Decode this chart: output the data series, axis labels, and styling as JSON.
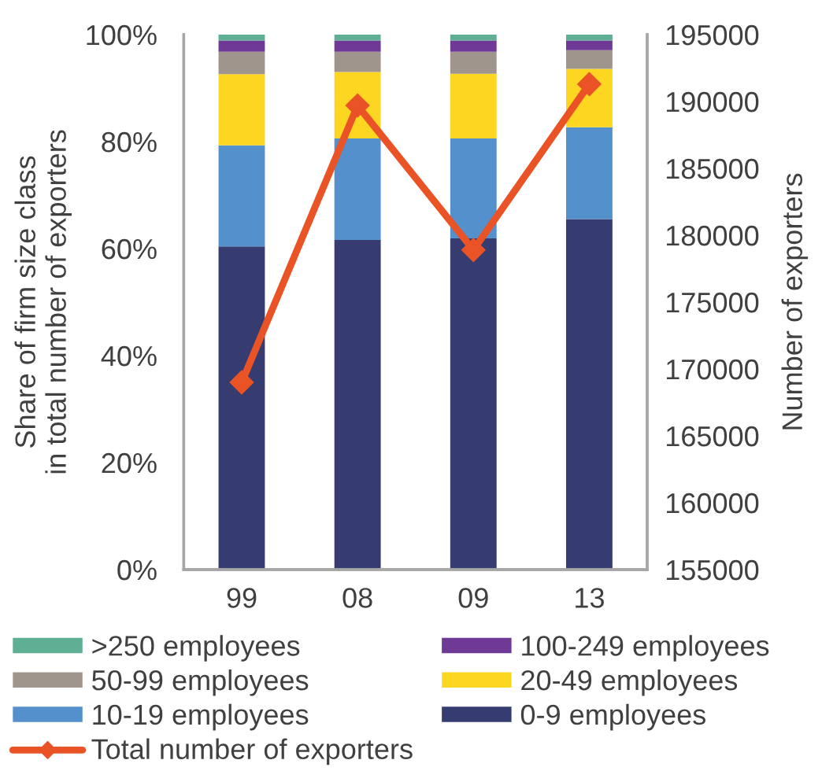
{
  "chart_data": {
    "type": "bar",
    "stacked": true,
    "ylabel": "Share of firm size class\nin total number of exporters",
    "y2label": "Number of exporters",
    "categories": [
      "99",
      "08",
      "09",
      "13"
    ],
    "series": [
      {
        "name": "0-9 employees",
        "color": "#363b70",
        "values": [
          60.4,
          61.6,
          61.9,
          65.5
        ]
      },
      {
        "name": "10-19 employees",
        "color": "#5390cc",
        "values": [
          18.9,
          19.0,
          18.7,
          17.2
        ]
      },
      {
        "name": "20-49 employees",
        "color": "#fdd622",
        "values": [
          13.3,
          12.4,
          12.1,
          10.9
        ]
      },
      {
        "name": "50-99 employees",
        "color": "#a0958d",
        "values": [
          4.2,
          3.8,
          4.1,
          3.5
        ]
      },
      {
        "name": "100-249 employees",
        "color": "#6f3996",
        "values": [
          2.1,
          2.1,
          2.1,
          1.8
        ]
      },
      {
        "name": ">250 employees",
        "color": "#5faf94",
        "values": [
          1.1,
          1.1,
          1.1,
          1.1
        ]
      },
      {
        "name": "Total number of exporters",
        "type": "line",
        "axis": "y2",
        "color": "#e95326",
        "values": [
          169000,
          189700,
          178900,
          191300
        ]
      }
    ],
    "ylim": [
      0,
      100
    ],
    "yticks": [
      {
        "value": 0,
        "label": "0%"
      },
      {
        "value": 20,
        "label": "20%"
      },
      {
        "value": 40,
        "label": "40%"
      },
      {
        "value": 60,
        "label": "60%"
      },
      {
        "value": 80,
        "label": "80%"
      },
      {
        "value": 100,
        "label": "100%"
      }
    ],
    "y2lim": [
      155000,
      195000
    ],
    "y2ticks": [
      155000,
      160000,
      165000,
      170000,
      175000,
      180000,
      185000,
      190000,
      195000
    ],
    "legend": "bottom",
    "marker": "diamond",
    "line_style": "solid",
    "grid": false
  }
}
